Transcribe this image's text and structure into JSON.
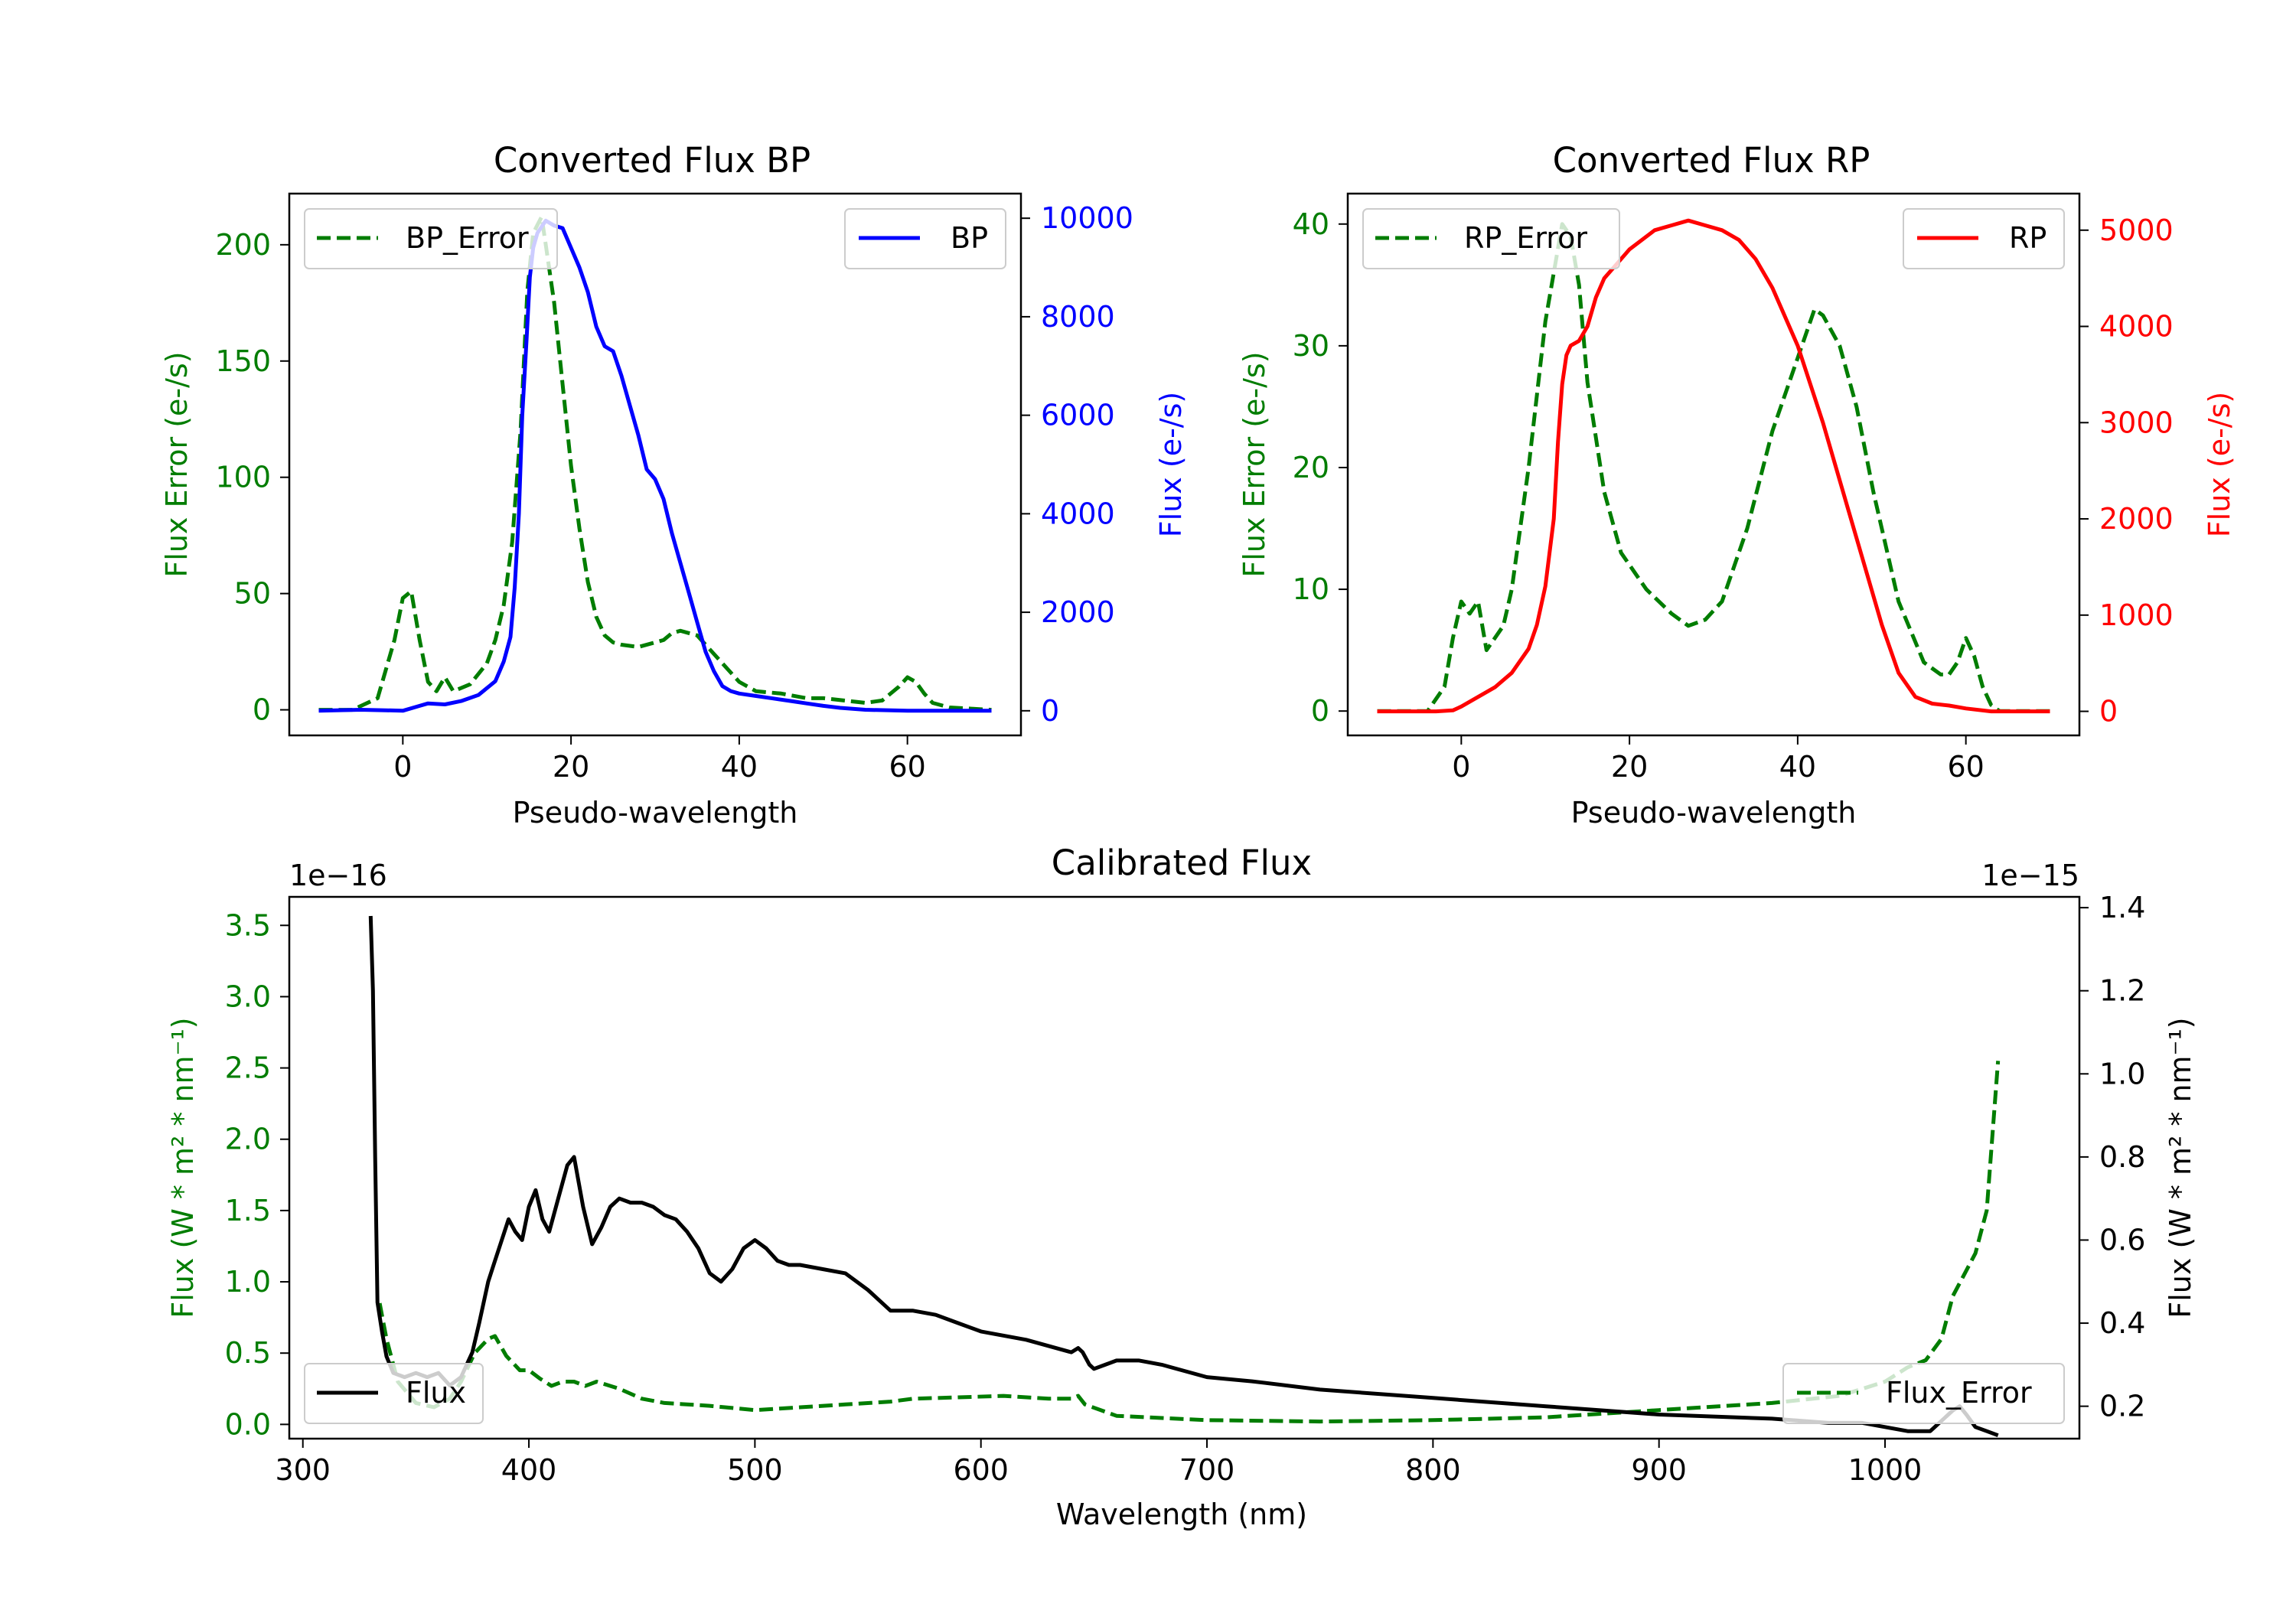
{
  "colors": {
    "green": "#007d00",
    "blue": "#0000ff",
    "red": "#ff0000",
    "black": "#000000"
  },
  "chart_data": [
    {
      "type": "line",
      "title": "Converted Flux BP",
      "xlabel": "Pseudo-wavelength",
      "xlim": [
        -13.5,
        73.5
      ],
      "xticks": [
        "0",
        "20",
        "40",
        "60"
      ],
      "left_axis": {
        "label": "Flux Error (e-/s)",
        "ylim": [
          -11,
          222
        ],
        "ticks": [
          "0",
          "50",
          "100",
          "150",
          "200"
        ],
        "tick_values": [
          0,
          50,
          100,
          150,
          200
        ],
        "color": "green"
      },
      "right_axis": {
        "label": "Flux (e-/s)",
        "ylim": [
          -500,
          10500
        ],
        "ticks": [
          "0",
          "2000",
          "4000",
          "6000",
          "8000",
          "10000"
        ],
        "tick_values": [
          0,
          2000,
          4000,
          6000,
          8000,
          10000
        ],
        "color": "blue"
      },
      "series": [
        {
          "name": "BP_Error",
          "axis": "left",
          "style": "dashed",
          "color": "green",
          "x": [
            -10,
            -6,
            -3,
            -1,
            0,
            1,
            2,
            3,
            4,
            5,
            6,
            8,
            10,
            11,
            12,
            13,
            14,
            14.8,
            15.5,
            16.5,
            17,
            18,
            19,
            20,
            21,
            22,
            23,
            24,
            25,
            26,
            28,
            30,
            31,
            32,
            33,
            35,
            36,
            38,
            40,
            42,
            45,
            48,
            50,
            55,
            57,
            59,
            60,
            61,
            62,
            63,
            65,
            70
          ],
          "y": [
            0,
            0,
            5,
            30,
            48,
            51,
            30,
            12,
            8,
            14,
            8,
            11,
            20,
            30,
            45,
            72,
            120,
            180,
            205,
            212,
            200,
            175,
            140,
            105,
            78,
            55,
            40,
            32,
            29,
            28,
            27,
            29,
            30,
            33,
            34,
            32,
            28,
            20,
            12,
            8,
            7,
            5,
            5,
            3,
            4,
            10,
            14,
            12,
            7,
            3,
            1,
            0
          ]
        },
        {
          "name": "BP",
          "axis": "right",
          "style": "solid",
          "color": "blue",
          "x": [
            -10,
            -5,
            -2,
            0,
            2,
            3,
            5,
            7,
            9,
            11,
            12,
            12.8,
            13.3,
            13.8,
            14.2,
            14.7,
            15.1,
            15.5,
            16,
            17,
            18,
            19,
            20,
            21,
            22,
            23,
            24,
            25,
            26,
            27,
            28,
            29,
            30,
            31,
            32,
            33,
            34,
            35,
            36,
            37,
            38,
            39,
            40,
            42,
            44,
            46,
            48,
            50,
            52,
            55,
            60,
            65,
            70
          ],
          "y": [
            0,
            20,
            10,
            0,
            100,
            150,
            130,
            200,
            320,
            600,
            1000,
            1500,
            2500,
            4000,
            6000,
            7500,
            8800,
            9400,
            9700,
            9950,
            9850,
            9800,
            9400,
            9000,
            8500,
            7800,
            7400,
            7300,
            6800,
            6200,
            5600,
            4900,
            4700,
            4300,
            3600,
            3000,
            2400,
            1800,
            1200,
            800,
            500,
            400,
            350,
            300,
            250,
            200,
            150,
            100,
            60,
            20,
            0,
            0,
            0
          ]
        }
      ],
      "legend": [
        {
          "label": "BP_Error",
          "position": "upper-left"
        },
        {
          "label": "BP",
          "position": "upper-right"
        }
      ]
    },
    {
      "type": "line",
      "title": "Converted Flux RP",
      "xlabel": "Pseudo-wavelength",
      "xlim": [
        -13.5,
        73.5
      ],
      "xticks": [
        "0",
        "20",
        "40",
        "60"
      ],
      "left_axis": {
        "label": "Flux Error (e-/s)",
        "ylim": [
          -2,
          42.5
        ],
        "ticks": [
          "0",
          "10",
          "20",
          "30",
          "40"
        ],
        "tick_values": [
          0,
          10,
          20,
          30,
          40
        ],
        "color": "green"
      },
      "right_axis": {
        "label": "Flux (e-/s)",
        "ylim": [
          -250,
          5380
        ],
        "ticks": [
          "0",
          "1000",
          "2000",
          "3000",
          "4000",
          "5000"
        ],
        "tick_values": [
          0,
          1000,
          2000,
          3000,
          4000,
          5000
        ],
        "color": "red"
      },
      "series": [
        {
          "name": "RP_Error",
          "axis": "left",
          "style": "dashed",
          "color": "green",
          "x": [
            -10,
            -4,
            -3,
            -2,
            -1,
            0,
            1,
            2,
            3,
            4,
            5,
            6,
            8,
            10,
            12,
            13,
            14,
            15,
            17,
            19,
            22,
            25,
            27,
            29,
            31,
            34,
            37,
            40,
            42,
            43,
            45,
            47,
            49,
            52,
            55,
            57,
            58,
            59,
            60,
            61,
            62,
            63,
            64,
            70
          ],
          "y": [
            0,
            0,
            1,
            2,
            6,
            9,
            8,
            9,
            5,
            6,
            7,
            10,
            20,
            32,
            40,
            39,
            35,
            27,
            18,
            13,
            10,
            8,
            7,
            7.5,
            9,
            15,
            23,
            29,
            33,
            32.5,
            30,
            25,
            18,
            9,
            4,
            3,
            3,
            4,
            6,
            4.5,
            2,
            0.5,
            0,
            0
          ]
        },
        {
          "name": "RP",
          "axis": "right",
          "style": "solid",
          "color": "red",
          "x": [
            -10,
            -3,
            -1,
            0,
            2,
            4,
            6,
            8,
            9,
            10,
            11,
            11.5,
            12,
            12.5,
            13,
            14,
            15,
            16,
            17,
            18,
            20,
            23,
            25,
            27,
            29,
            31,
            33,
            35,
            37,
            40,
            43,
            46,
            48,
            50,
            52,
            54,
            56,
            58,
            60,
            63,
            65,
            70
          ],
          "y": [
            0,
            0,
            10,
            50,
            150,
            250,
            400,
            650,
            900,
            1300,
            2000,
            2800,
            3400,
            3700,
            3800,
            3850,
            4000,
            4300,
            4500,
            4600,
            4800,
            5000,
            5050,
            5100,
            5050,
            5000,
            4900,
            4700,
            4400,
            3800,
            3000,
            2100,
            1500,
            900,
            400,
            150,
            80,
            60,
            30,
            0,
            0,
            0
          ]
        }
      ],
      "legend": [
        {
          "label": "RP_Error",
          "position": "upper-left"
        },
        {
          "label": "RP",
          "position": "upper-right"
        }
      ]
    },
    {
      "type": "line",
      "title": "Calibrated Flux",
      "xlabel": "Wavelength (nm)",
      "xlim": [
        294,
        1086
      ],
      "xticks": [
        "300",
        "400",
        "500",
        "600",
        "700",
        "800",
        "900",
        "1000"
      ],
      "xtick_values": [
        300,
        400,
        500,
        600,
        700,
        800,
        900,
        1000
      ],
      "left_axis": {
        "label": "Flux (W * m² * nm⁻¹)",
        "offset": "1e−16",
        "ylim": [
          -0.1,
          3.7
        ],
        "ticks": [
          "0.0",
          "0.5",
          "1.0",
          "1.5",
          "2.0",
          "2.5",
          "3.0",
          "3.5"
        ],
        "tick_values": [
          0,
          0.5,
          1,
          1.5,
          2,
          2.5,
          3,
          3.5
        ],
        "color": "green"
      },
      "right_axis": {
        "label": "Flux (W * m² * nm⁻¹)",
        "offset": "1e−15",
        "ylim": [
          0.122,
          1.426
        ],
        "ticks": [
          "0.2",
          "0.4",
          "0.6",
          "0.8",
          "1.0",
          "1.2",
          "1.4"
        ],
        "tick_values": [
          0.2,
          0.4,
          0.6,
          0.8,
          1.0,
          1.2,
          1.4
        ],
        "color": "black"
      },
      "series": [
        {
          "name": "Flux_Error",
          "axis": "left",
          "style": "dashed",
          "color": "green",
          "x": [
            334,
            337,
            342,
            350,
            358,
            365,
            370,
            376,
            382,
            385,
            390,
            396,
            400,
            405,
            410,
            415,
            420,
            425,
            430,
            440,
            450,
            460,
            480,
            500,
            520,
            540,
            560,
            570,
            590,
            610,
            630,
            640,
            643,
            646,
            660,
            700,
            750,
            800,
            850,
            900,
            950,
            980,
            1000,
            1010,
            1018,
            1025,
            1030,
            1035,
            1040,
            1045,
            1050
          ],
          "y": [
            0.85,
            0.6,
            0.3,
            0.15,
            0.12,
            0.18,
            0.3,
            0.5,
            0.6,
            0.62,
            0.48,
            0.38,
            0.38,
            0.32,
            0.27,
            0.3,
            0.3,
            0.27,
            0.3,
            0.25,
            0.18,
            0.15,
            0.13,
            0.1,
            0.12,
            0.14,
            0.16,
            0.18,
            0.19,
            0.2,
            0.18,
            0.18,
            0.2,
            0.14,
            0.06,
            0.03,
            0.02,
            0.03,
            0.05,
            0.1,
            0.15,
            0.2,
            0.3,
            0.4,
            0.45,
            0.6,
            0.9,
            1.05,
            1.2,
            1.5,
            2.55
          ]
        },
        {
          "name": "Flux",
          "axis": "right",
          "style": "solid",
          "color": "black",
          "x": [
            330,
            331,
            332,
            333,
            335,
            337,
            340,
            345,
            350,
            355,
            360,
            365,
            370,
            375,
            378,
            382,
            385,
            388,
            391,
            394,
            397,
            400,
            403,
            406,
            409,
            413,
            417,
            420,
            424,
            428,
            432,
            436,
            440,
            445,
            450,
            455,
            460,
            465,
            470,
            475,
            480,
            485,
            490,
            495,
            500,
            505,
            510,
            515,
            520,
            530,
            540,
            550,
            560,
            570,
            580,
            590,
            600,
            620,
            640,
            643,
            645,
            648,
            650,
            655,
            660,
            670,
            680,
            700,
            720,
            750,
            800,
            850,
            900,
            950,
            975,
            990,
            1000,
            1010,
            1020,
            1030,
            1033,
            1036,
            1040,
            1045,
            1050
          ],
          "y": [
            1.38,
            1.2,
            0.8,
            0.45,
            0.38,
            0.32,
            0.28,
            0.27,
            0.28,
            0.27,
            0.28,
            0.25,
            0.27,
            0.33,
            0.4,
            0.5,
            0.55,
            0.6,
            0.65,
            0.62,
            0.6,
            0.68,
            0.72,
            0.65,
            0.62,
            0.7,
            0.78,
            0.8,
            0.68,
            0.59,
            0.63,
            0.68,
            0.7,
            0.69,
            0.69,
            0.68,
            0.66,
            0.65,
            0.62,
            0.58,
            0.52,
            0.5,
            0.53,
            0.58,
            0.6,
            0.58,
            0.55,
            0.54,
            0.54,
            0.53,
            0.52,
            0.48,
            0.43,
            0.43,
            0.42,
            0.4,
            0.38,
            0.36,
            0.33,
            0.34,
            0.33,
            0.3,
            0.29,
            0.3,
            0.31,
            0.31,
            0.3,
            0.27,
            0.26,
            0.24,
            0.22,
            0.2,
            0.18,
            0.17,
            0.16,
            0.16,
            0.15,
            0.14,
            0.14,
            0.19,
            0.2,
            0.18,
            0.15,
            0.14,
            0.13
          ]
        }
      ],
      "legend": [
        {
          "label": "Flux",
          "position": "lower-left"
        },
        {
          "label": "Flux_Error",
          "position": "lower-right"
        }
      ]
    }
  ]
}
